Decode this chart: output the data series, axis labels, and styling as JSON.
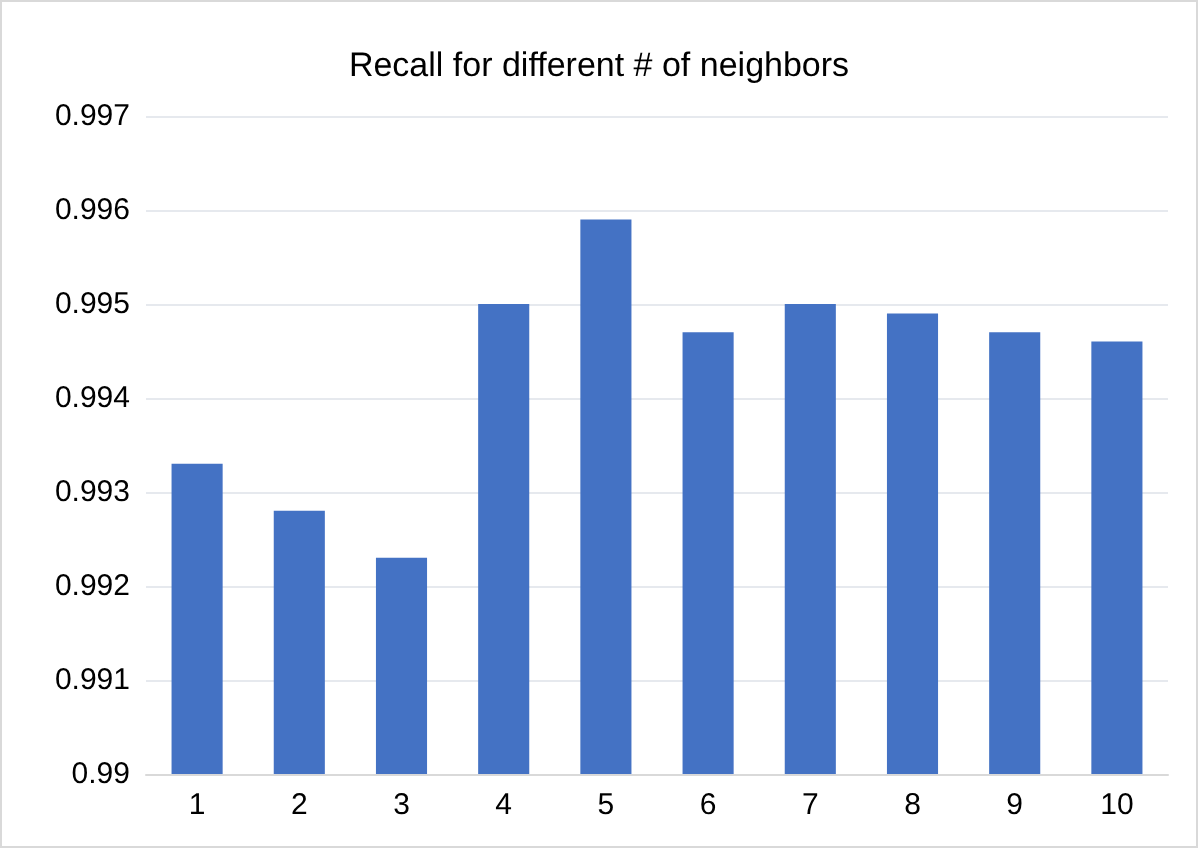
{
  "chart_data": {
    "type": "bar",
    "title": "Recall for different # of neighbors",
    "categories": [
      "1",
      "2",
      "3",
      "4",
      "5",
      "6",
      "7",
      "8",
      "9",
      "10"
    ],
    "values": [
      0.9933,
      0.9928,
      0.9923,
      0.995,
      0.9959,
      0.9947,
      0.995,
      0.9949,
      0.9947,
      0.9946
    ],
    "color": "#4472c4",
    "ylim": [
      0.99,
      0.997
    ],
    "yticks": [
      0.99,
      0.991,
      0.992,
      0.993,
      0.994,
      0.995,
      0.996,
      0.997
    ],
    "grid": "y"
  }
}
